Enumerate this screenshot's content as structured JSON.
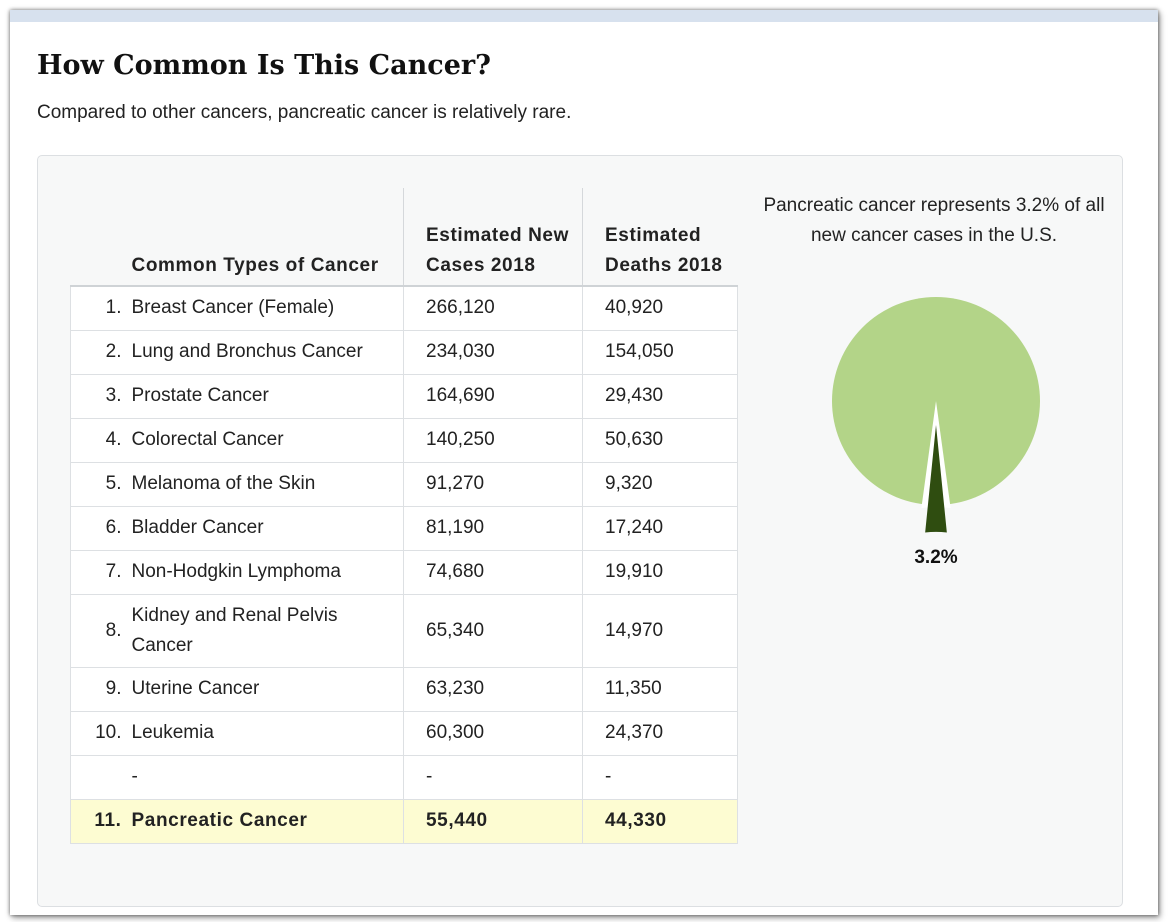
{
  "section": {
    "title": "How Common Is This Cancer?",
    "subtitle": "Compared to other cancers, pancreatic cancer is relatively rare."
  },
  "table": {
    "headers": {
      "type": "Common Types of Cancer",
      "new_cases": "Estimated New Cases 2018",
      "deaths": "Estimated Deaths 2018"
    },
    "rows": [
      {
        "rank": "1.",
        "type": "Breast Cancer (Female)",
        "new_cases": "266,120",
        "deaths": "40,920"
      },
      {
        "rank": "2.",
        "type": "Lung and Bronchus Cancer",
        "new_cases": "234,030",
        "deaths": "154,050"
      },
      {
        "rank": "3.",
        "type": "Prostate Cancer",
        "new_cases": "164,690",
        "deaths": "29,430"
      },
      {
        "rank": "4.",
        "type": "Colorectal Cancer",
        "new_cases": "140,250",
        "deaths": "50,630"
      },
      {
        "rank": "5.",
        "type": "Melanoma of the Skin",
        "new_cases": "91,270",
        "deaths": "9,320"
      },
      {
        "rank": "6.",
        "type": "Bladder Cancer",
        "new_cases": "81,190",
        "deaths": "17,240"
      },
      {
        "rank": "7.",
        "type": "Non-Hodgkin Lymphoma",
        "new_cases": "74,680",
        "deaths": "19,910"
      },
      {
        "rank": "8.",
        "type": "Kidney and Renal Pelvis Cancer",
        "new_cases": "65,340",
        "deaths": "14,970"
      },
      {
        "rank": "9.",
        "type": "Uterine Cancer",
        "new_cases": "63,230",
        "deaths": "11,350"
      },
      {
        "rank": "10.",
        "type": "Leukemia",
        "new_cases": "60,300",
        "deaths": "24,370"
      },
      {
        "rank": "",
        "type": "-",
        "new_cases": "-",
        "deaths": "-"
      },
      {
        "rank": "11.",
        "type": "Pancreatic Cancer",
        "new_cases": "55,440",
        "deaths": "44,330"
      }
    ]
  },
  "chart_data": {
    "type": "pie",
    "title": "Pancreatic cancer represents 3.2% of all new cancer cases in the U.S.",
    "slices": [
      {
        "label": "3.2%",
        "value": 3.2,
        "color": "#2f4d10"
      },
      {
        "label": "",
        "value": 96.8,
        "color": "#b3d488"
      }
    ]
  },
  "colors": {
    "highlight_row": "#fdfcd2",
    "panel_bg": "#f7f8f8",
    "pie_main": "#b3d488",
    "pie_slice": "#2f4d10"
  }
}
